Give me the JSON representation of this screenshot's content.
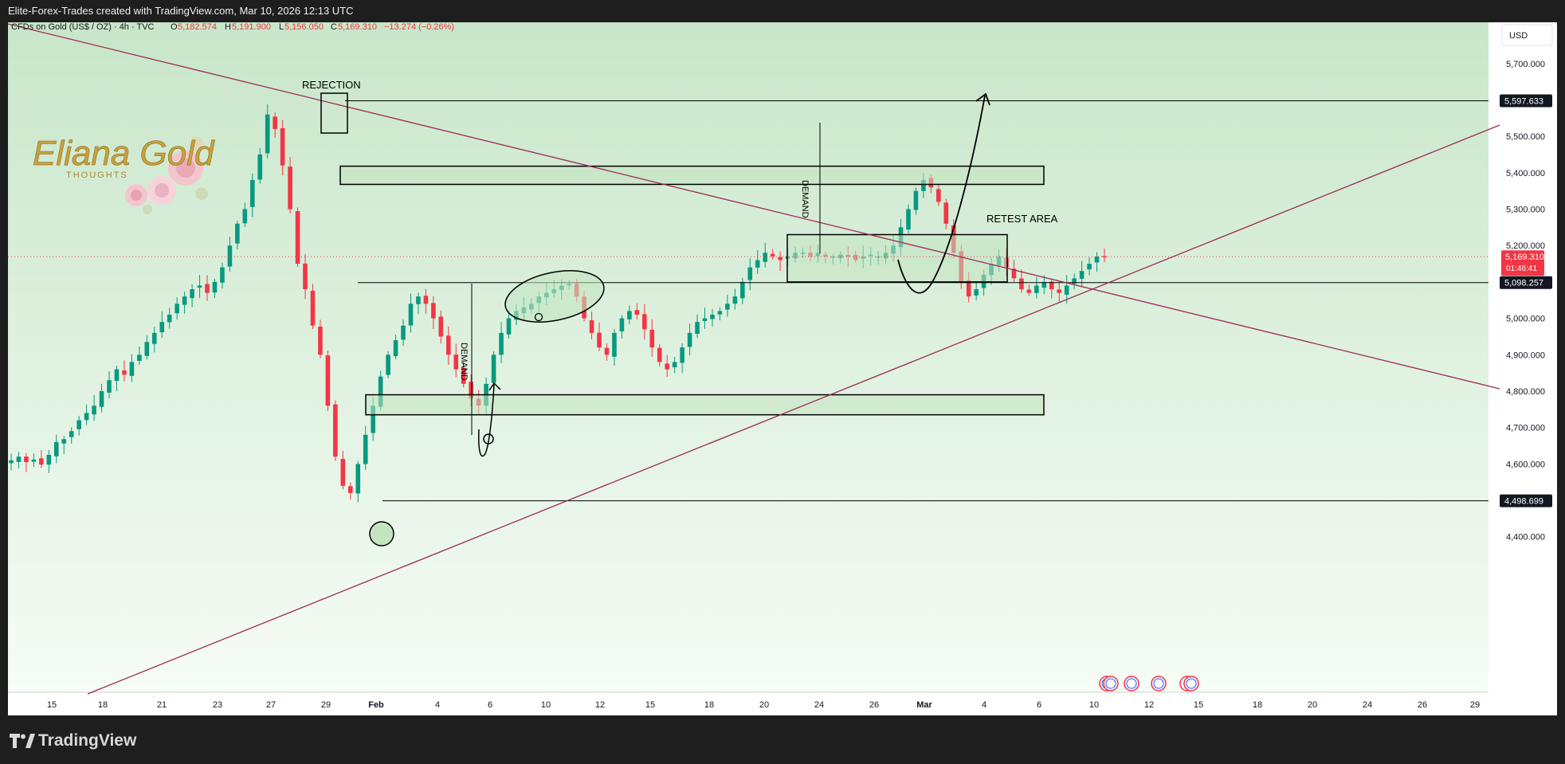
{
  "header": {
    "title": "Elite-Forex-Trades created with TradingView.com, Mar 10, 2026 12:13 UTC"
  },
  "symbol": {
    "name": "CFDs on Gold (US$ / OZ) · 4h · TVC",
    "open_label": "O",
    "open": "5,182.574",
    "high_label": "H",
    "high": "5,191.900",
    "low_label": "L",
    "low": "5,156.050",
    "close_label": "C",
    "close": "5,169.310",
    "change": "−13.274 (−0.26%)"
  },
  "currency_button": "USD",
  "brand": {
    "name": "TradingView"
  },
  "logo": {
    "line1": "Eliana Gold",
    "line2": "THOUGHTS"
  },
  "colors": {
    "up": "#089981",
    "down": "#f23645",
    "trendline": "#9c2a55",
    "zone_fill": "#c3e4c0",
    "bg_top": "#c8e6c9",
    "bg_bottom": "#f6fcf6"
  },
  "chart_data": {
    "type": "candlestick",
    "interval": "4h",
    "ylim": [
      4340,
      5780
    ],
    "y_ticks": [
      "5,700.000",
      "5,600.000",
      "5,500.000",
      "5,400.000",
      "5,300.000",
      "5,200.000",
      "5,100.000",
      "5,000.000",
      "4,900.000",
      "4,800.000",
      "4,700.000",
      "4,600.000",
      "4,500.000",
      "4,400.000"
    ],
    "x_ticks": [
      "15",
      "18",
      "21",
      "23",
      "27",
      "29",
      "Feb",
      "4",
      "6",
      "10",
      "12",
      "15",
      "18",
      "20",
      "24",
      "26",
      "Mar",
      "4",
      "6",
      "10",
      "12",
      "15",
      "18",
      "20",
      "24",
      "26",
      "29"
    ],
    "price_levels": [
      {
        "price": 5597.633,
        "label": "5,597.633"
      },
      {
        "price": 5098.257,
        "label": "5,098.257"
      },
      {
        "price": 4498.699,
        "label": "4,498.699"
      }
    ],
    "last_price": {
      "price": 5169.31,
      "label": "5,169.310",
      "countdown": "01:46:41"
    },
    "annotations": [
      {
        "text": "REJECTION"
      },
      {
        "text": "RETEST AREA"
      },
      {
        "text": "DEMAND"
      },
      {
        "text": "DEMAND"
      }
    ],
    "zones": [
      {
        "top": 5418,
        "bottom": 5368
      },
      {
        "top": 5230,
        "bottom": 5100
      },
      {
        "top": 4790,
        "bottom": 4735
      }
    ],
    "trend_closes": [
      4610,
      4620,
      4605,
      4612,
      4598,
      4625,
      4660,
      4668,
      4690,
      4720,
      4740,
      4760,
      4800,
      4830,
      4860,
      4845,
      4880,
      4900,
      4935,
      4960,
      4990,
      5010,
      5040,
      5060,
      5080,
      5090,
      5070,
      5100,
      5140,
      5200,
      5260,
      5300,
      5380,
      5450,
      5560,
      5520,
      5420,
      5300,
      5150,
      5080,
      4980,
      4900,
      4760,
      4620,
      4540,
      4520,
      4600,
      4680,
      4760,
      4840,
      4900,
      4940,
      4980,
      5040,
      5060,
      5040,
      5000,
      4950,
      4900,
      4860,
      4820,
      4780,
      4760,
      4820,
      4900,
      4960,
      5000,
      5020,
      5030,
      5040,
      5060,
      5070,
      5080,
      5090,
      5095,
      5060,
      5000,
      4960,
      4920,
      4900,
      4960,
      5000,
      5020,
      5010,
      4970,
      4920,
      4880,
      4860,
      4880,
      4920,
      4960,
      4990,
      5000,
      5010,
      5020,
      5040,
      5060,
      5100,
      5140,
      5160,
      5180,
      5170,
      5160,
      5170,
      5180,
      5180,
      5170,
      5180,
      5170,
      5170,
      5175,
      5170,
      5160,
      5170,
      5175,
      5170,
      5180,
      5200,
      5250,
      5300,
      5350,
      5380,
      5360,
      5320,
      5260,
      5180,
      5100,
      5060,
      5080,
      5120,
      5150,
      5170,
      5140,
      5110,
      5080,
      5070,
      5090,
      5100,
      5080,
      5070,
      5090,
      5110,
      5130,
      5150,
      5170,
      5170
    ]
  }
}
